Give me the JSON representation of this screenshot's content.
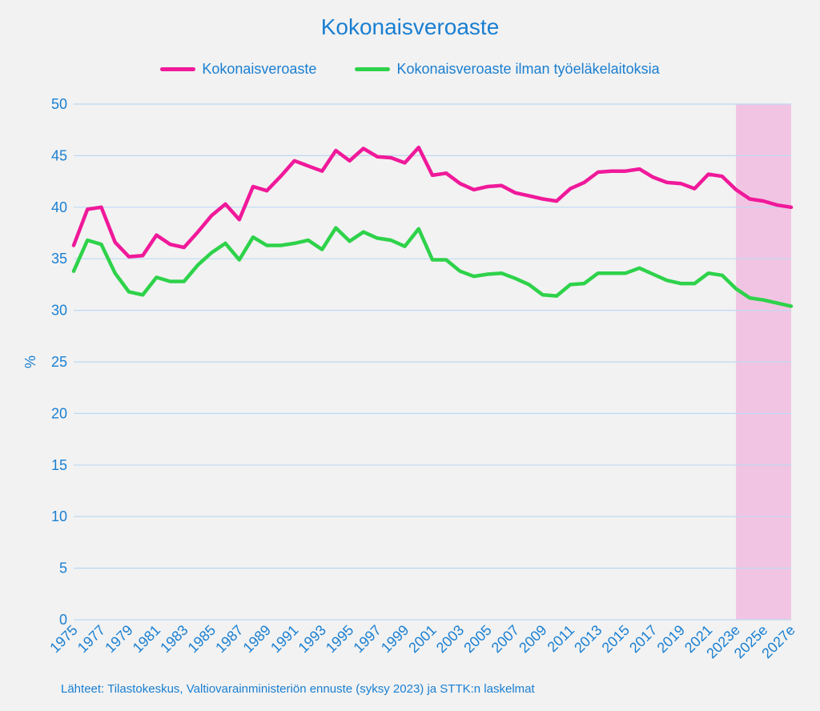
{
  "chart_data": {
    "type": "line",
    "title": "Kokonaisveroaste",
    "ylabel": "%",
    "xlabel": "",
    "ylim": [
      0,
      50
    ],
    "yticks": [
      0,
      5,
      10,
      15,
      20,
      25,
      30,
      35,
      40,
      45,
      50
    ],
    "x": [
      "1975",
      "1976",
      "1977",
      "1978",
      "1979",
      "1980",
      "1981",
      "1982",
      "1983",
      "1984",
      "1985",
      "1986",
      "1987",
      "1988",
      "1989",
      "1990",
      "1991",
      "1992",
      "1993",
      "1994",
      "1995",
      "1996",
      "1997",
      "1998",
      "1999",
      "2000",
      "2001",
      "2002",
      "2003",
      "2004",
      "2005",
      "2006",
      "2007",
      "2008",
      "2009",
      "2010",
      "2011",
      "2012",
      "2013",
      "2014",
      "2015",
      "2016",
      "2017",
      "2018",
      "2019",
      "2020",
      "2021",
      "2022",
      "2023e",
      "2024e",
      "2025e",
      "2026e",
      "2027e"
    ],
    "x_tick_labels": [
      "1975",
      "1977",
      "1979",
      "1981",
      "1983",
      "1985",
      "1987",
      "1989",
      "1991",
      "1993",
      "1995",
      "1997",
      "1999",
      "2001",
      "2003",
      "2005",
      "2007",
      "2009",
      "2011",
      "2013",
      "2015",
      "2017",
      "2019",
      "2021",
      "2023e",
      "2025e",
      "2027e"
    ],
    "forecast_range": [
      "2023e",
      "2027e"
    ],
    "forecast_color": "#f2c4e3",
    "grid": true,
    "legend_position": "top-center",
    "series": [
      {
        "name": "Kokonaisveroaste",
        "color": "#f0199a",
        "values": [
          36.3,
          39.8,
          40.0,
          36.6,
          35.2,
          35.3,
          37.3,
          36.4,
          36.1,
          37.6,
          39.2,
          40.3,
          38.8,
          42.0,
          41.6,
          43.0,
          44.5,
          44.0,
          43.5,
          45.5,
          44.5,
          45.7,
          44.9,
          44.8,
          44.3,
          45.8,
          43.1,
          43.3,
          42.3,
          41.7,
          42.0,
          42.1,
          41.4,
          41.1,
          40.8,
          40.6,
          41.8,
          42.4,
          43.4,
          43.5,
          43.5,
          43.7,
          42.9,
          42.4,
          42.3,
          41.8,
          43.2,
          43.0,
          41.7,
          40.8,
          40.6,
          40.2,
          40.0
        ]
      },
      {
        "name": "Kokonaisveroaste ilman työeläkelaitoksia",
        "color": "#2ed24a",
        "values": [
          33.8,
          36.8,
          36.4,
          33.6,
          31.8,
          31.5,
          33.2,
          32.8,
          32.8,
          34.4,
          35.6,
          36.5,
          34.9,
          37.1,
          36.3,
          36.3,
          36.5,
          36.8,
          35.9,
          38.0,
          36.7,
          37.6,
          37.0,
          36.8,
          36.2,
          37.9,
          34.9,
          34.9,
          33.8,
          33.3,
          33.5,
          33.6,
          33.1,
          32.5,
          31.5,
          31.4,
          32.5,
          32.6,
          33.6,
          33.6,
          33.6,
          34.1,
          33.5,
          32.9,
          32.6,
          32.6,
          33.6,
          33.4,
          32.1,
          31.2,
          31.0,
          30.7,
          30.4
        ]
      }
    ]
  },
  "source_note": "Lähteet: Tilastokeskus, Valtiovarainministeriön ennuste (syksy 2023) ja STTK:n laskelmat"
}
